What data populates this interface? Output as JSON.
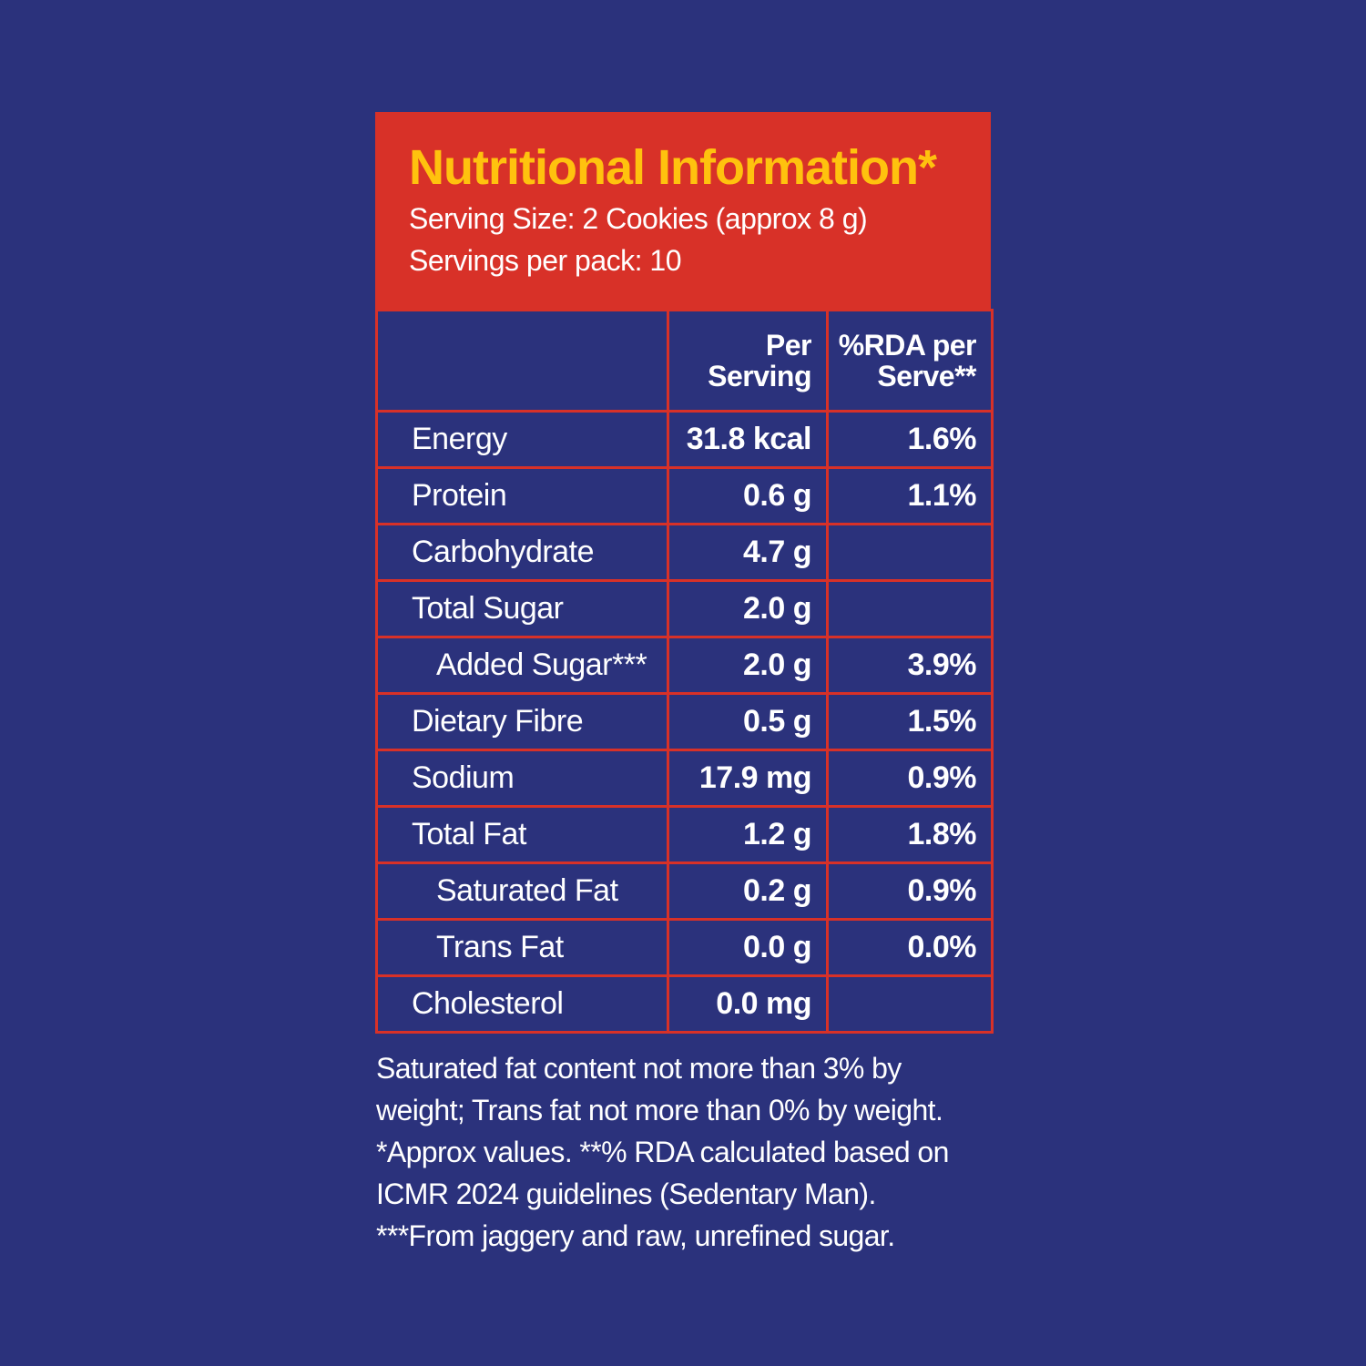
{
  "header": {
    "title": "Nutritional Information*",
    "serving_size": "Serving Size: 2 Cookies (approx 8 g)",
    "servings_per_pack": "Servings per pack: 10"
  },
  "table": {
    "columns": [
      "",
      "Per Serving",
      "%RDA per Serve**"
    ],
    "col2_line1": "Per",
    "col2_line2": "Serving",
    "col3_line1": "%RDA per",
    "col3_line2": "Serve**",
    "rows": [
      {
        "name": "Energy",
        "per_serving": "31.8 kcal",
        "rda": "1.6%"
      },
      {
        "name": "Protein",
        "per_serving": "0.6 g",
        "rda": "1.1%"
      },
      {
        "name": "Carbohydrate",
        "per_serving": "4.7 g",
        "rda": ""
      },
      {
        "name": "Total Sugar",
        "per_serving": "2.0 g",
        "rda": ""
      },
      {
        "name": "Added Sugar***",
        "per_serving": "2.0 g",
        "rda": "3.9%"
      },
      {
        "name": "Dietary Fibre",
        "per_serving": "0.5 g",
        "rda": "1.5%"
      },
      {
        "name": "Sodium",
        "per_serving": "17.9 mg",
        "rda": "0.9%"
      },
      {
        "name": "Total Fat",
        "per_serving": "1.2 g",
        "rda": "1.8%"
      },
      {
        "name": "Saturated Fat",
        "per_serving": "0.2 g",
        "rda": "0.9%"
      },
      {
        "name": "Trans Fat",
        "per_serving": "0.0 g",
        "rda": "0.0%"
      },
      {
        "name": "Cholesterol",
        "per_serving": "0.0 mg",
        "rda": ""
      }
    ]
  },
  "footnote": {
    "lines": [
      "Saturated fat content not more than 3% by",
      "weight; Trans fat not more than 0% by weight.",
      "*Approx values. **% RDA calculated based on",
      "ICMR 2024 guidelines (Sedentary Man).",
      "***From jaggery and raw, unrefined sugar."
    ]
  },
  "colors": {
    "background": "#2b327c",
    "header_red": "#d83128",
    "title_yellow": "#ffc20e",
    "text": "#ffffff"
  }
}
